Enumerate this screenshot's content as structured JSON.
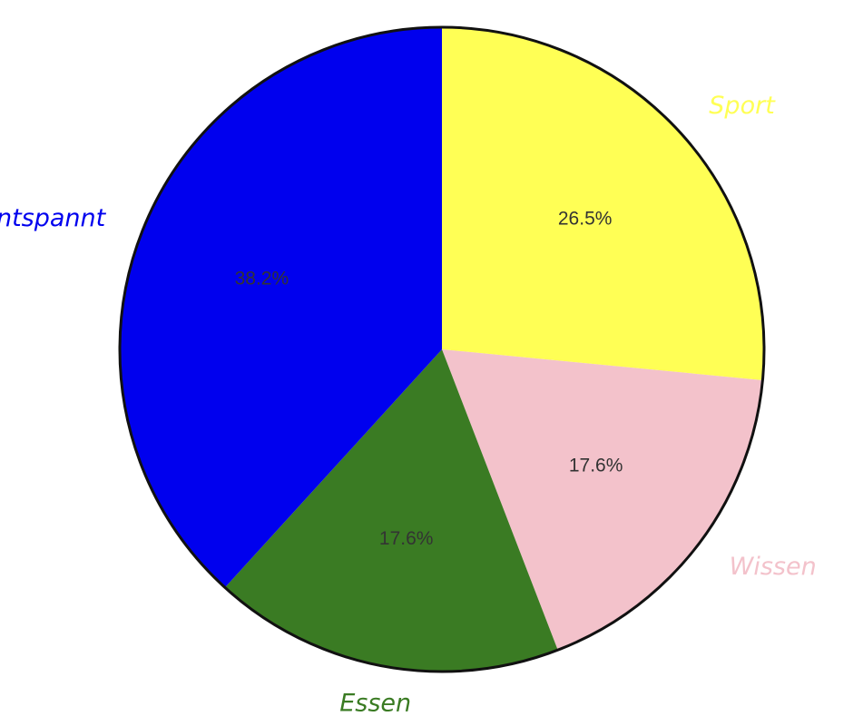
{
  "chart_data": {
    "type": "pie",
    "categories": [
      "Sport",
      "Wissen",
      "Essen",
      "Entspannt"
    ],
    "values": [
      26.5,
      17.6,
      17.6,
      38.2
    ],
    "value_labels": [
      "26.5%",
      "17.6%",
      "17.6%",
      "38.2%"
    ],
    "colors": [
      "#ffff55",
      "#f3c2cb",
      "#3a7b23",
      "#0000ee"
    ]
  }
}
